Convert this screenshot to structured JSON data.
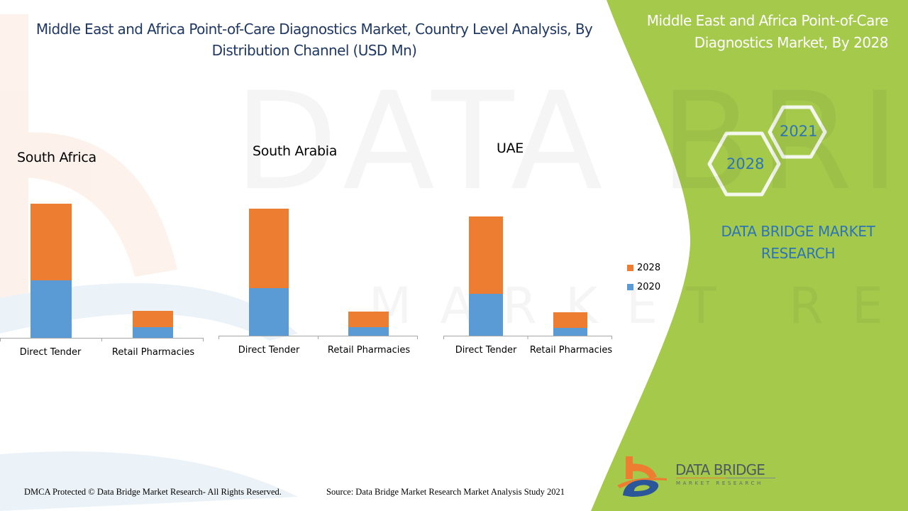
{
  "header": {
    "title": "Middle East and Africa Point-of-Care Diagnostics Market, Country Level Analysis, By Distribution Channel (USD Mn)"
  },
  "side_panel": {
    "title": "Middle East and Africa Point-of-Care Diagnostics Market, By 2028",
    "hex_labels": [
      "2021",
      "2028"
    ],
    "brand_text": "DATA BRIDGE MARKET RESEARCH"
  },
  "footer": {
    "copyright": "DMCA Protected © Data Bridge  Market Research- All Rights Reserved.",
    "source": "Source: Data Bridge Market Research Market Analysis Study 2021"
  },
  "logo": {
    "name": "DATA BRIDGE",
    "sub": "MARKET RESEARCH"
  },
  "watermark": {
    "line1": "DATA BRIDGE",
    "line2": "MARKET RESEARCH"
  },
  "colors": {
    "series_2020": "#5b9bd5",
    "series_2028": "#ed7d31",
    "panel_green": "#a4c94b",
    "title_blue": "#1f3864",
    "brand_blue": "#2e75b6"
  },
  "chart_data": [
    {
      "type": "bar",
      "stacked": true,
      "title": "South Africa",
      "categories": [
        "Direct Tender",
        "Retail Pharmacies"
      ],
      "series": [
        {
          "name": "2020",
          "values": [
            81,
            15
          ]
        },
        {
          "name": "2028",
          "values": [
            108,
            23
          ]
        }
      ],
      "xlabel": "",
      "ylabel": "",
      "ylim": [
        0,
        200
      ],
      "grid": false,
      "legend": "none"
    },
    {
      "type": "bar",
      "stacked": true,
      "title": "South Arabia",
      "categories": [
        "Direct Tender",
        "Retail Pharmacies"
      ],
      "series": [
        {
          "name": "2020",
          "values": [
            67,
            12
          ]
        },
        {
          "name": "2028",
          "values": [
            112,
            22
          ]
        }
      ],
      "xlabel": "",
      "ylabel": "",
      "ylim": [
        0,
        200
      ],
      "grid": false,
      "legend": "none"
    },
    {
      "type": "bar",
      "stacked": true,
      "title": "UAE",
      "categories": [
        "Direct Tender",
        "Retail Pharmacies"
      ],
      "series": [
        {
          "name": "2020",
          "values": [
            59,
            11
          ]
        },
        {
          "name": "2028",
          "values": [
            109,
            22
          ]
        }
      ],
      "xlabel": "",
      "ylabel": "",
      "ylim": [
        0,
        200
      ],
      "grid": false,
      "legend": "right",
      "legend_entries": [
        "2028",
        "2020"
      ]
    }
  ]
}
